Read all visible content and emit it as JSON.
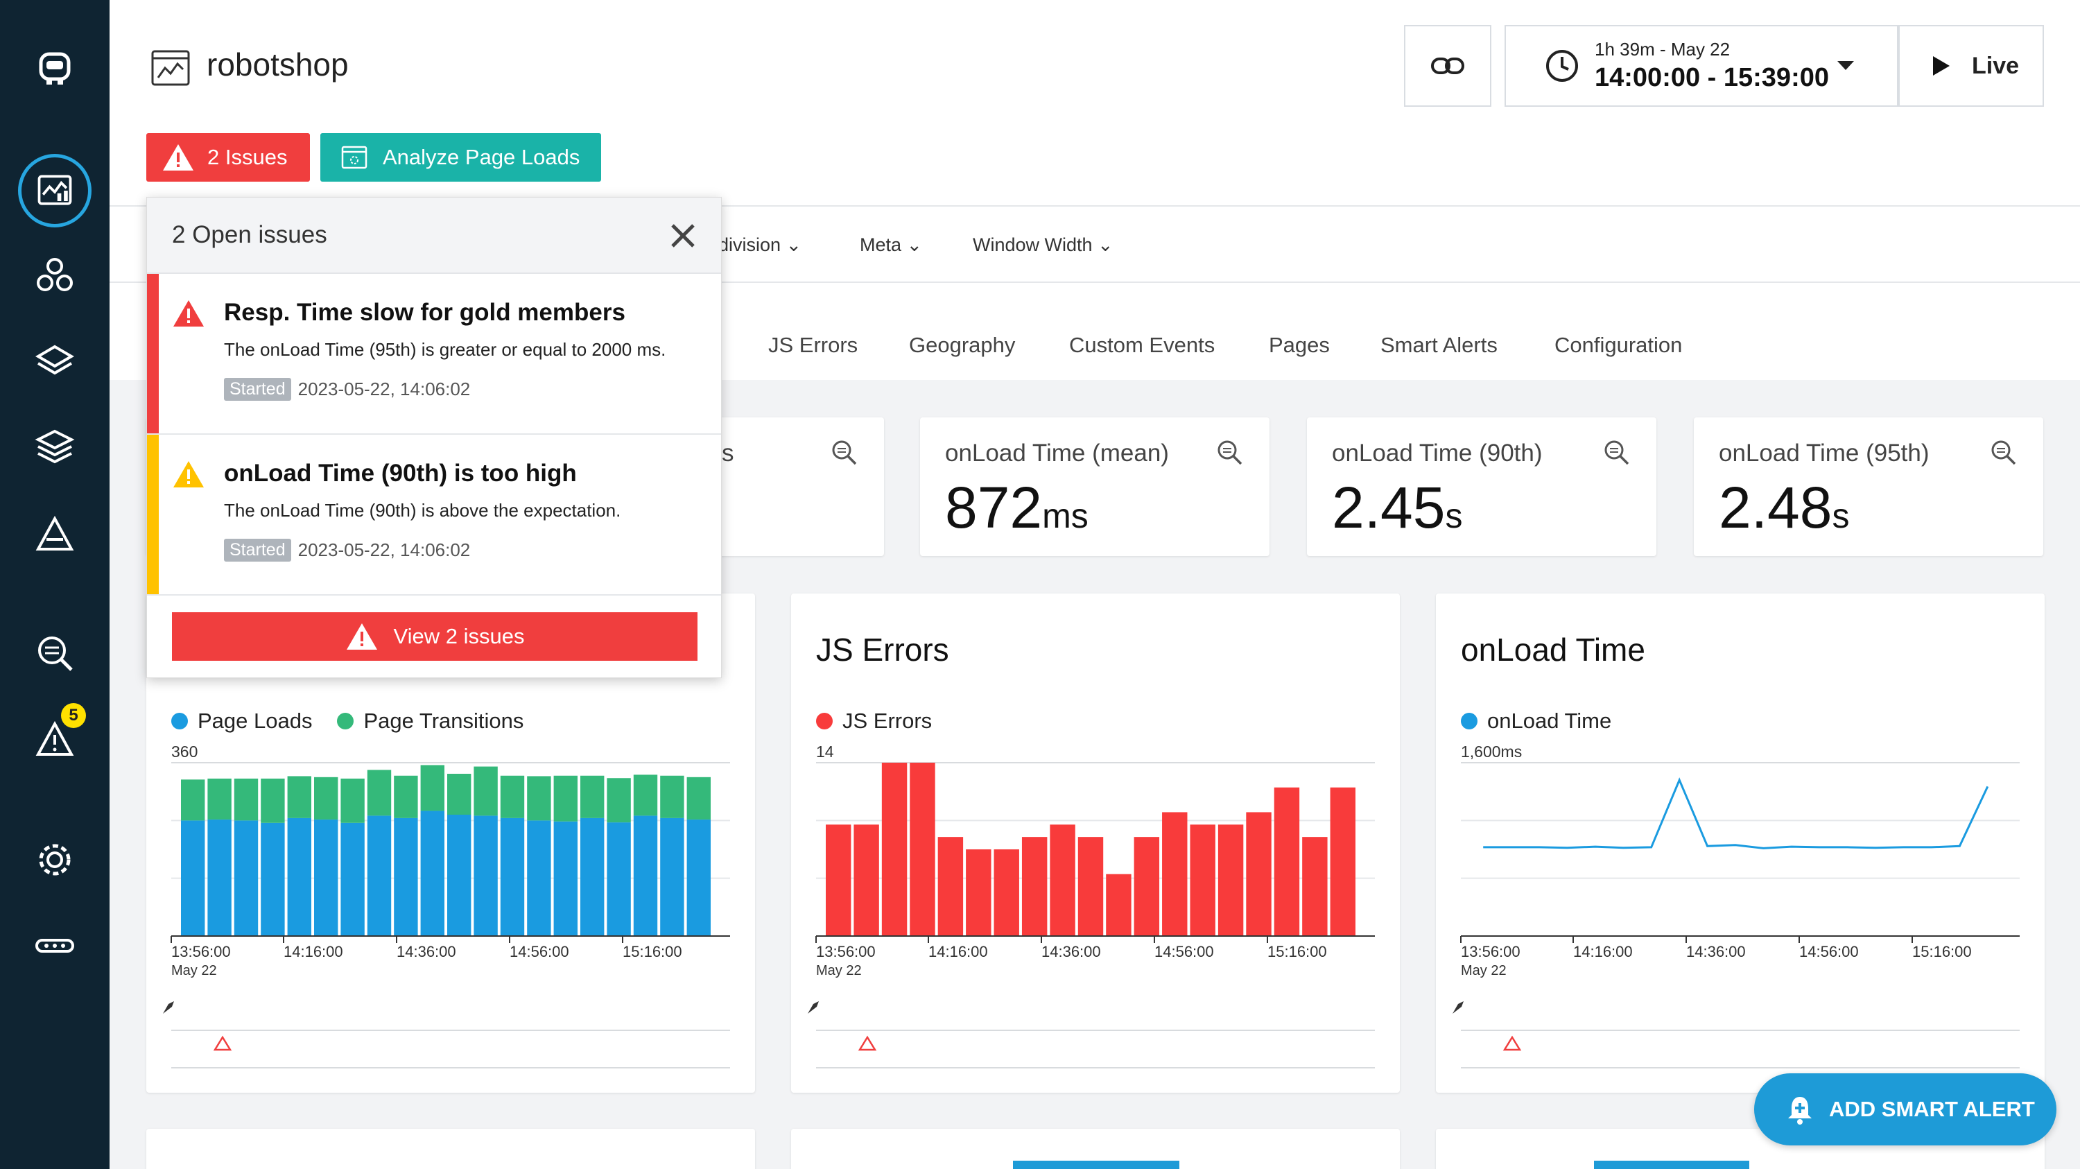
{
  "header": {
    "app_title": "robotshop",
    "issues_button": "2 Issues",
    "analyze_button": "Analyze Page Loads",
    "time_range_label": "1h 39m - May 22",
    "time_range_value": "14:00:00 - 15:39:00",
    "live_label": "Live"
  },
  "sidebar": {
    "alert_badge": "5"
  },
  "filters": [
    "division",
    "Meta",
    "Window Width"
  ],
  "tabs": [
    "JS Errors",
    "Geography",
    "Custom Events",
    "Pages",
    "Smart Alerts",
    "Configuration"
  ],
  "metrics": [
    {
      "label": "s",
      "value": "",
      "unit": ""
    },
    {
      "label": "onLoad Time (mean)",
      "value": "872",
      "unit": "ms"
    },
    {
      "label": "onLoad Time (90th)",
      "value": "2.45",
      "unit": "s"
    },
    {
      "label": "onLoad Time (95th)",
      "value": "2.48",
      "unit": "s"
    }
  ],
  "popover": {
    "title": "2 Open issues",
    "issues": [
      {
        "title": "Resp. Time slow for gold members",
        "description": "The onLoad Time (95th) is greater or equal to 2000 ms.",
        "started_label": "Started",
        "started": "2023-05-22, 14:06:02",
        "severity_color": "#f03e3e"
      },
      {
        "title": "onLoad Time (90th) is too high",
        "description": "The onLoad Time (90th) is above the expectation.",
        "started_label": "Started",
        "started": "2023-05-22, 14:06:02",
        "severity_color": "#ffc200"
      }
    ],
    "view_button": "View 2 issues"
  },
  "charts": {
    "page_loads": {
      "legend": [
        "Page Loads",
        "Page Transitions"
      ]
    },
    "js_errors": {
      "title": "JS Errors",
      "legend": [
        "JS Errors"
      ]
    },
    "onload": {
      "title": "onLoad Time",
      "legend": [
        "onLoad Time"
      ]
    }
  },
  "fab_label": "ADD SMART ALERT",
  "chart_data": [
    {
      "type": "bar",
      "stacked": true,
      "title": "Page Loads",
      "ytick": "360",
      "ylim": [
        0,
        360
      ],
      "x_ticks": [
        "13:56:00",
        "14:16:00",
        "14:36:00",
        "14:56:00",
        "15:16:00"
      ],
      "x_sub": "May 22",
      "series": [
        {
          "name": "Page Loads",
          "color": "#1a9be0",
          "values": [
            240,
            242,
            240,
            235,
            245,
            242,
            235,
            250,
            245,
            260,
            252,
            250,
            245,
            240,
            238,
            245,
            236,
            250,
            245,
            242
          ]
        },
        {
          "name": "Page Transitions",
          "color": "#34b97a",
          "values": [
            85,
            85,
            87,
            92,
            87,
            88,
            92,
            95,
            88,
            95,
            85,
            102,
            88,
            92,
            95,
            88,
            92,
            85,
            88,
            88
          ]
        }
      ]
    },
    {
      "type": "bar",
      "title": "JS Errors",
      "ytick": "14",
      "ylim": [
        0,
        14
      ],
      "x_ticks": [
        "13:56:00",
        "14:16:00",
        "14:36:00",
        "14:56:00",
        "15:16:00"
      ],
      "x_sub": "May 22",
      "series": [
        {
          "name": "JS Errors",
          "color": "#f83b3b",
          "values": [
            9,
            9,
            14,
            14,
            8,
            7,
            7,
            8,
            9,
            8,
            5,
            8,
            10,
            9,
            9,
            10,
            12,
            8,
            12
          ]
        }
      ]
    },
    {
      "type": "line",
      "title": "onLoad Time",
      "ytick": "1,600ms",
      "ylim": [
        0,
        1600
      ],
      "x_ticks": [
        "13:56:00",
        "14:16:00",
        "14:36:00",
        "14:56:00",
        "15:16:00"
      ],
      "x_sub": "May 22",
      "series": [
        {
          "name": "onLoad Time",
          "color": "#1a9be0",
          "values": [
            820,
            820,
            820,
            815,
            825,
            815,
            820,
            1440,
            830,
            840,
            810,
            825,
            820,
            820,
            815,
            820,
            820,
            830,
            1380
          ]
        }
      ]
    }
  ]
}
